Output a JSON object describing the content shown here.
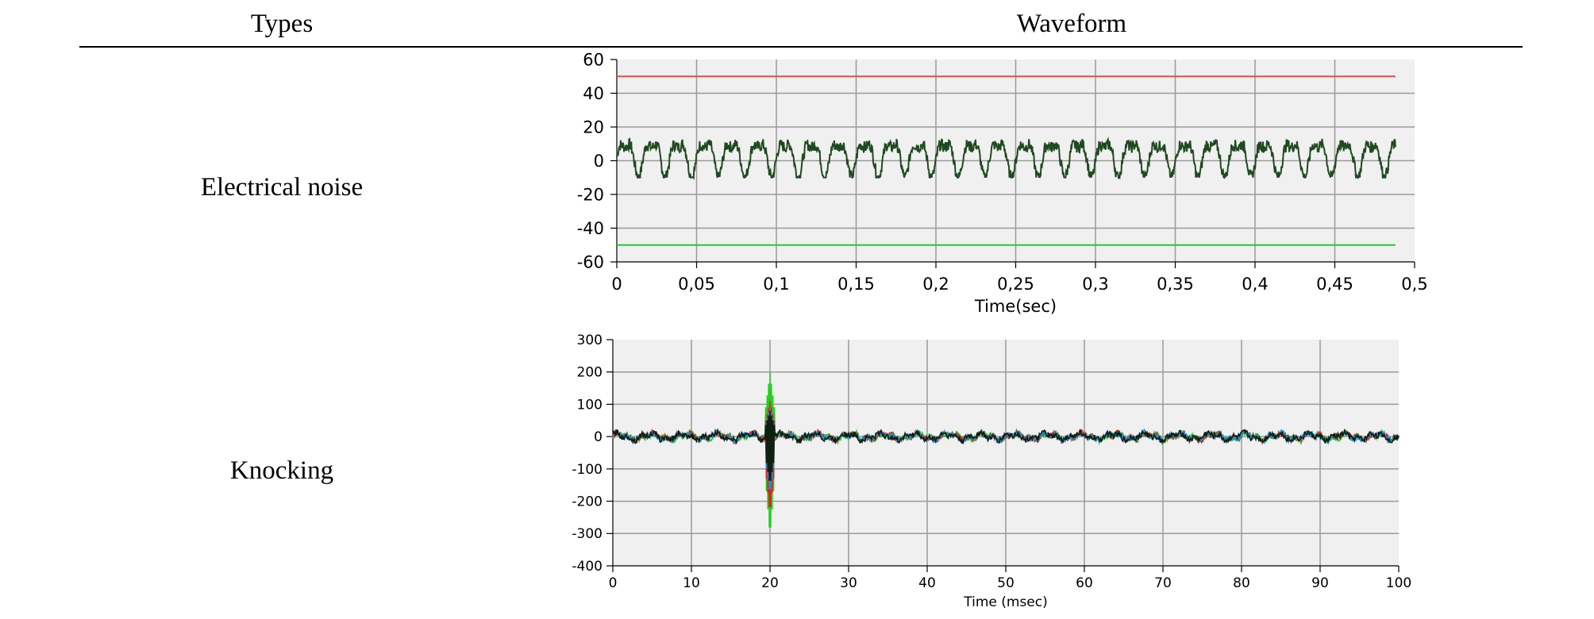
{
  "header": {
    "types": "Types",
    "waveform": "Waveform"
  },
  "rows": [
    {
      "label": "Electrical  noise"
    },
    {
      "label": "Knocking"
    }
  ],
  "chart_data": [
    {
      "type": "line",
      "title": "",
      "xlabel": "Time(sec)",
      "ylabel": "",
      "xlim": [
        0,
        0.5
      ],
      "ylim": [
        -60,
        60
      ],
      "x_ticks": [
        "0",
        "0,05",
        "0,1",
        "0,15",
        "0,2",
        "0,25",
        "0,3",
        "0,35",
        "0,4",
        "0,45",
        "0,5"
      ],
      "y_ticks": [
        "60",
        "40",
        "20",
        "0",
        "-20",
        "-40",
        "-60"
      ],
      "grid": true,
      "series": [
        {
          "color": "#e05050",
          "kind": "threshold",
          "x": [
            0,
            0.488
          ],
          "y": [
            50,
            50
          ]
        },
        {
          "color": "#20d020",
          "kind": "threshold",
          "x": [
            0,
            0.488
          ],
          "y": [
            -50,
            -50
          ]
        },
        {
          "color": "#1f4a1f",
          "kind": "signal",
          "period_s": 0.0167,
          "amplitude_range": [
            -10,
            16
          ],
          "x_range": [
            0,
            0.488
          ]
        }
      ]
    },
    {
      "type": "line",
      "title": "",
      "xlabel": "Time (msec)",
      "ylabel": "",
      "xlim": [
        0,
        100
      ],
      "ylim": [
        -400,
        300
      ],
      "x_ticks": [
        "0",
        "10",
        "20",
        "30",
        "40",
        "50",
        "60",
        "70",
        "80",
        "90",
        "100"
      ],
      "y_ticks": [
        "300",
        "200",
        "100",
        "0",
        "-100",
        "-200",
        "-300",
        "-400"
      ],
      "grid": true,
      "series": [
        {
          "color": "#20d020",
          "kind": "signal",
          "spike_x": 20,
          "spike_range": [
            -310,
            200
          ]
        },
        {
          "color": "#e02020",
          "kind": "signal",
          "spike_x": 20,
          "spike_range": [
            -240,
            110
          ]
        },
        {
          "color": "#2090e0",
          "kind": "signal",
          "spike_x": 20,
          "spike_range": [
            -180,
            90
          ]
        },
        {
          "color": "#102010",
          "kind": "signal",
          "spike_x": 20,
          "spike_range": [
            -150,
            80
          ]
        }
      ]
    }
  ]
}
